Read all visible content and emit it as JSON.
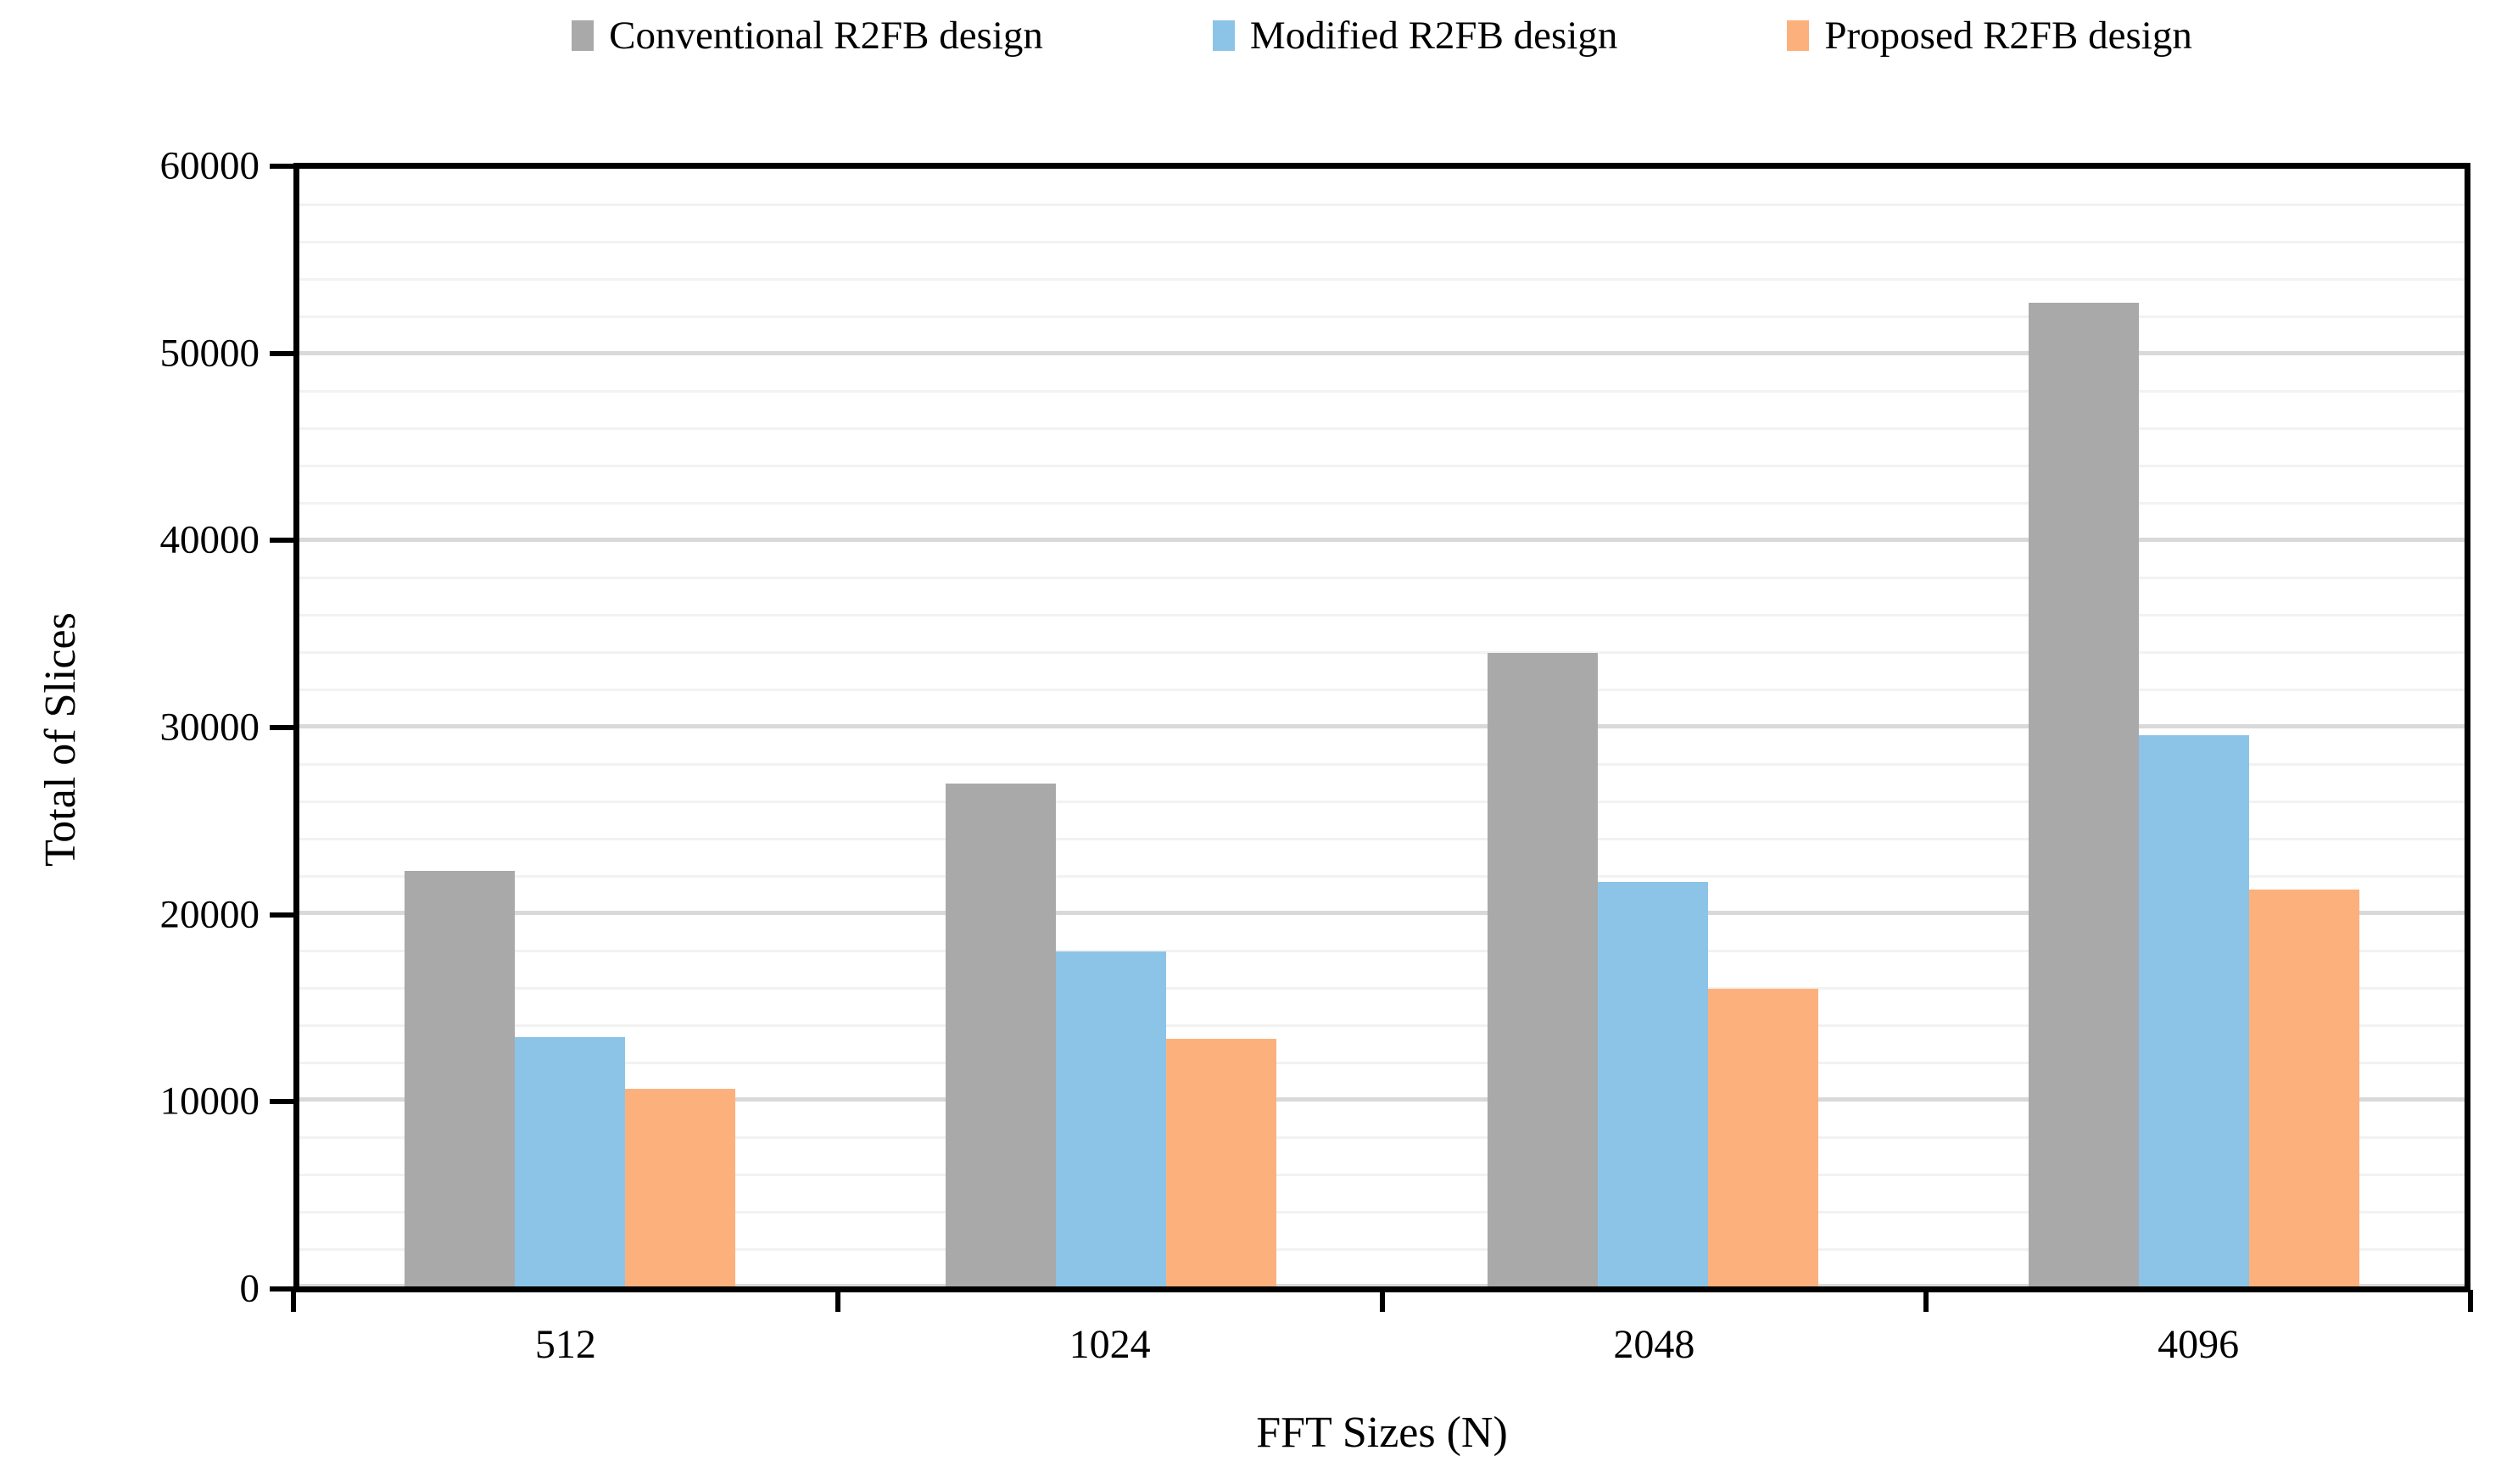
{
  "chart_data": {
    "type": "bar",
    "title": "",
    "xlabel": "FFT Sizes (N)",
    "ylabel": "Total of Slices",
    "categories": [
      "512",
      "1024",
      "2048",
      "4096"
    ],
    "series": [
      {
        "name": "Conventional R2FB design",
        "color": "#A9A9A9",
        "values": [
          22300,
          27000,
          34000,
          52800
        ]
      },
      {
        "name": "Modified R2FB design",
        "color": "#8CC4E8",
        "values": [
          13400,
          18000,
          21700,
          29600
        ]
      },
      {
        "name": "Proposed R2FB design",
        "color": "#FCB17D",
        "values": [
          10600,
          13300,
          16000,
          21300
        ]
      }
    ],
    "ylim": [
      0,
      60000
    ],
    "yticks": [
      0,
      10000,
      20000,
      30000,
      40000,
      50000,
      60000
    ],
    "minor_grid_step": 2000,
    "grid": true,
    "legend_position": "top",
    "gridline_major_color": "#d9d9d9",
    "gridline_minor_color": "#f2f2f2",
    "axis_color": "#000000",
    "background_color": "#ffffff"
  }
}
